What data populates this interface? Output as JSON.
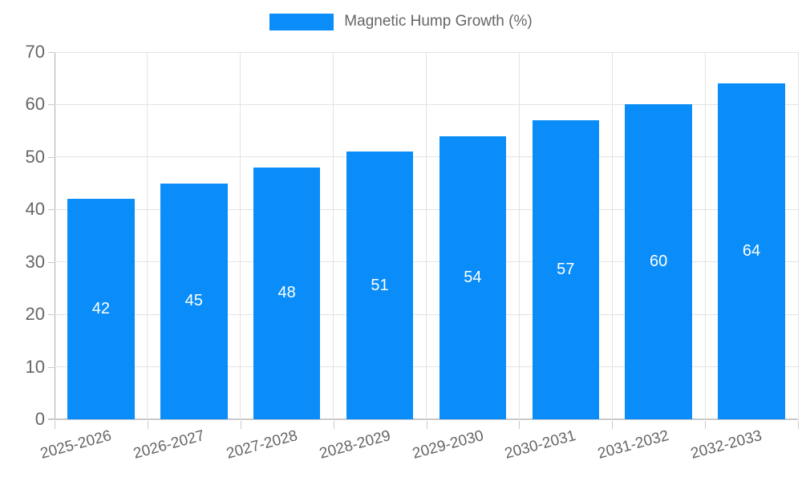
{
  "chart_data": {
    "type": "bar",
    "title": "Magnetic Hump Growth (%)",
    "legend_label": "Magnetic Hump Growth (%)",
    "legend_position": "top",
    "categories": [
      "2025-2026",
      "2026-2027",
      "2027-2028",
      "2028-2029",
      "2029-2030",
      "2030-2031",
      "2031-2032",
      "2032-2033"
    ],
    "values": [
      42,
      45,
      48,
      51,
      54,
      57,
      60,
      64
    ],
    "value_labels_shown": true,
    "xlabel": "",
    "ylabel": "",
    "ylim": [
      0,
      70
    ],
    "ytick_step": 10,
    "yticks": [
      0,
      10,
      20,
      30,
      40,
      50,
      60,
      70
    ],
    "grid": true,
    "x_label_rotation_deg": -15,
    "colors": {
      "bar": "#0a8df9",
      "value_label": "#ffffff",
      "axis_text": "#666666",
      "gridline": "#e3e3e3",
      "axis_line": "#adadad",
      "baseline": "#c9c9c9"
    }
  }
}
